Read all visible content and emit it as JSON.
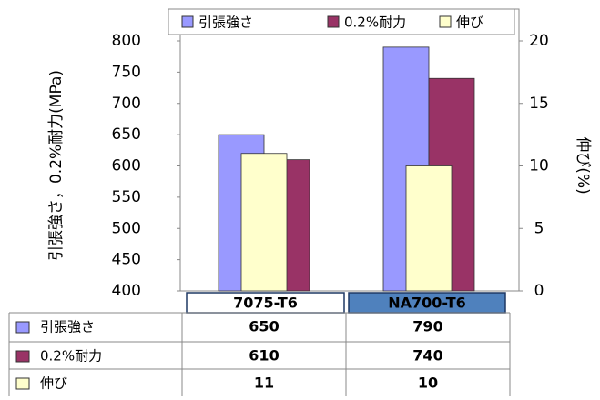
{
  "chart_data": {
    "type": "bar",
    "categories": [
      "7075-T6",
      "NA700-T6"
    ],
    "series": [
      {
        "name": "引張強さ",
        "color": "#9999ff",
        "values": [
          650,
          790
        ]
      },
      {
        "name": "0.2%耐力",
        "color": "#993366",
        "values": [
          610,
          740
        ]
      },
      {
        "name": "伸び",
        "color": "#ffffcc",
        "values": [
          11,
          10
        ],
        "axis": "y2"
      }
    ],
    "ylabel": "引張強さ，0.2%耐力(MPa)",
    "y2label": "伸び(%)",
    "ylim": [
      400,
      800
    ],
    "yticks": [
      400,
      450,
      500,
      550,
      600,
      650,
      700,
      750,
      800
    ],
    "y2lim": [
      0,
      20
    ],
    "y2ticks": [
      0,
      5,
      10,
      15,
      20
    ],
    "legend": "top",
    "data_table": true
  }
}
